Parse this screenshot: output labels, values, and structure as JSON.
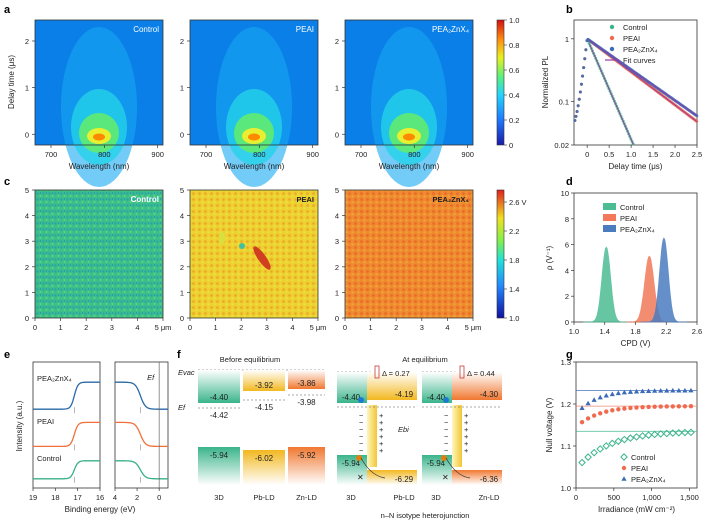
{
  "panels": {
    "a": {
      "label": "a",
      "titles": [
        "Control",
        "PEAI",
        "PEA₂ZnX₄"
      ],
      "xlabel": "Wavelength (nm)",
      "ylabel": "Delay time (μs)",
      "xticks": [
        "700",
        "800",
        "900"
      ],
      "yticks": [
        "0",
        "1",
        "2"
      ],
      "cbar_ticks": [
        "0",
        "0.2",
        "0.4",
        "0.6",
        "0.8",
        "1.0"
      ]
    },
    "b": {
      "label": "b",
      "xlabel": "Delay time (μs)",
      "ylabel": "Normalized PL",
      "xticks": [
        "0",
        "0.5",
        "1.0",
        "1.5",
        "2.0",
        "2.5"
      ],
      "yticks": [
        "0.02",
        "0.1",
        "1"
      ],
      "legend": [
        "Control",
        "PEAI",
        "PEA₂ZnX₄",
        "Fit curves"
      ]
    },
    "c": {
      "label": "c",
      "titles": [
        "Control",
        "PEAI",
        "PEA₂ZnX₄"
      ],
      "xticks": [
        "0",
        "1",
        "2",
        "3",
        "4",
        "5 μm"
      ],
      "yticks": [
        "0",
        "1",
        "2",
        "3",
        "4",
        "5"
      ],
      "cbar_ticks": [
        "1.0",
        "1.4",
        "1.8",
        "2.2",
        "2.6 V"
      ]
    },
    "d": {
      "label": "d",
      "xlabel": "CPD (V)",
      "ylabel": "ρ (V⁻¹)",
      "xticks": [
        "1.0",
        "1.4",
        "1.8",
        "2.2",
        "2.6"
      ],
      "yticks": [
        "0",
        "2",
        "4",
        "6",
        "8",
        "10"
      ],
      "legend": [
        "Control",
        "PEAI",
        "PEA₂ZnX₄"
      ]
    },
    "e": {
      "label": "e",
      "xlabel": "Binding energy (eV)",
      "ylabel": "Intensity (a.u.)",
      "xticks_left": [
        "19",
        "18",
        "17",
        "16"
      ],
      "xticks_right": [
        "4",
        "2",
        "0"
      ],
      "curves": [
        "PEA₂ZnX₄",
        "PEAI",
        "Control"
      ],
      "ef": "Ef"
    },
    "f": {
      "label": "f",
      "before_title": "Before equilibrium",
      "after_title": "At equilibrium",
      "evac": "Evac",
      "ef": "Ef",
      "ebi": "Ebi",
      "before": {
        "vb": [
          "-5.94",
          "-6.02",
          "-5.92"
        ],
        "cb": [
          "-4.40",
          "-3.92",
          "-3.86"
        ],
        "ef": [
          "-4.42",
          "-4.15",
          "-3.98"
        ],
        "names": [
          "3D",
          "Pb-LD",
          "Zn-LD"
        ]
      },
      "mid": {
        "delta": "Δ = 0.27",
        "cb": [
          "-4.40",
          "-4.19"
        ],
        "vb": [
          "-5.94",
          "-6.29"
        ],
        "names": [
          "3D",
          "Pb-LD"
        ]
      },
      "right": {
        "delta": "Δ = 0.44",
        "cb": [
          "-4.40",
          "-4.30"
        ],
        "vb": [
          "-5.94",
          "-6.36"
        ],
        "names": [
          "3D",
          "Zn-LD"
        ]
      },
      "caption": "n–N isotype heterojunction"
    },
    "g": {
      "label": "g",
      "xlabel": "Irradiance (mW cm⁻²)",
      "ylabel": "Null voltage (V)",
      "xticks": [
        "0",
        "500",
        "1,000",
        "1,500"
      ],
      "yticks": [
        "1.0",
        "1.1",
        "1.2",
        "1.3"
      ],
      "legend": [
        "Control",
        "PEAI",
        "PEA₂ZnX₄"
      ]
    }
  },
  "chart_data": [
    {
      "type": "line",
      "title": "",
      "xlabel": "Delay time (μs)",
      "ylabel": "Normalized PL",
      "log_y": true,
      "xlim": [
        -0.3,
        2.5
      ],
      "ylim": [
        0.02,
        2
      ],
      "series": [
        {
          "name": "Control",
          "tau": 0.27
        },
        {
          "name": "PEAI",
          "tau": 0.82
        },
        {
          "name": "PEA₂ZnX₄",
          "tau": 0.88
        }
      ]
    },
    {
      "type": "area",
      "title": "",
      "xlabel": "CPD (V)",
      "ylabel": "ρ (V⁻¹)",
      "xlim": [
        1.0,
        2.6
      ],
      "ylim": [
        0,
        10
      ],
      "series": [
        {
          "name": "Control",
          "center": 1.42,
          "peak": 5.8,
          "width": 0.055
        },
        {
          "name": "PEAI",
          "center": 1.98,
          "peak": 5.1,
          "width": 0.06
        },
        {
          "name": "PEA₂ZnX₄",
          "center": 2.17,
          "peak": 6.5,
          "width": 0.055
        }
      ]
    },
    {
      "type": "scatter",
      "title": "",
      "xlabel": "Irradiance (mW cm⁻²)",
      "ylabel": "Null voltage (V)",
      "xlim": [
        0,
        1600
      ],
      "ylim": [
        1.0,
        1.3
      ],
      "series": [
        {
          "name": "Control",
          "sat": 1.135,
          "start": 1.045,
          "k": 420
        },
        {
          "name": "PEAI",
          "sat": 1.195,
          "start": 1.145,
          "k": 300
        },
        {
          "name": "PEA₂ZnX₄",
          "sat": 1.232,
          "start": 1.175,
          "k": 260
        }
      ]
    }
  ]
}
